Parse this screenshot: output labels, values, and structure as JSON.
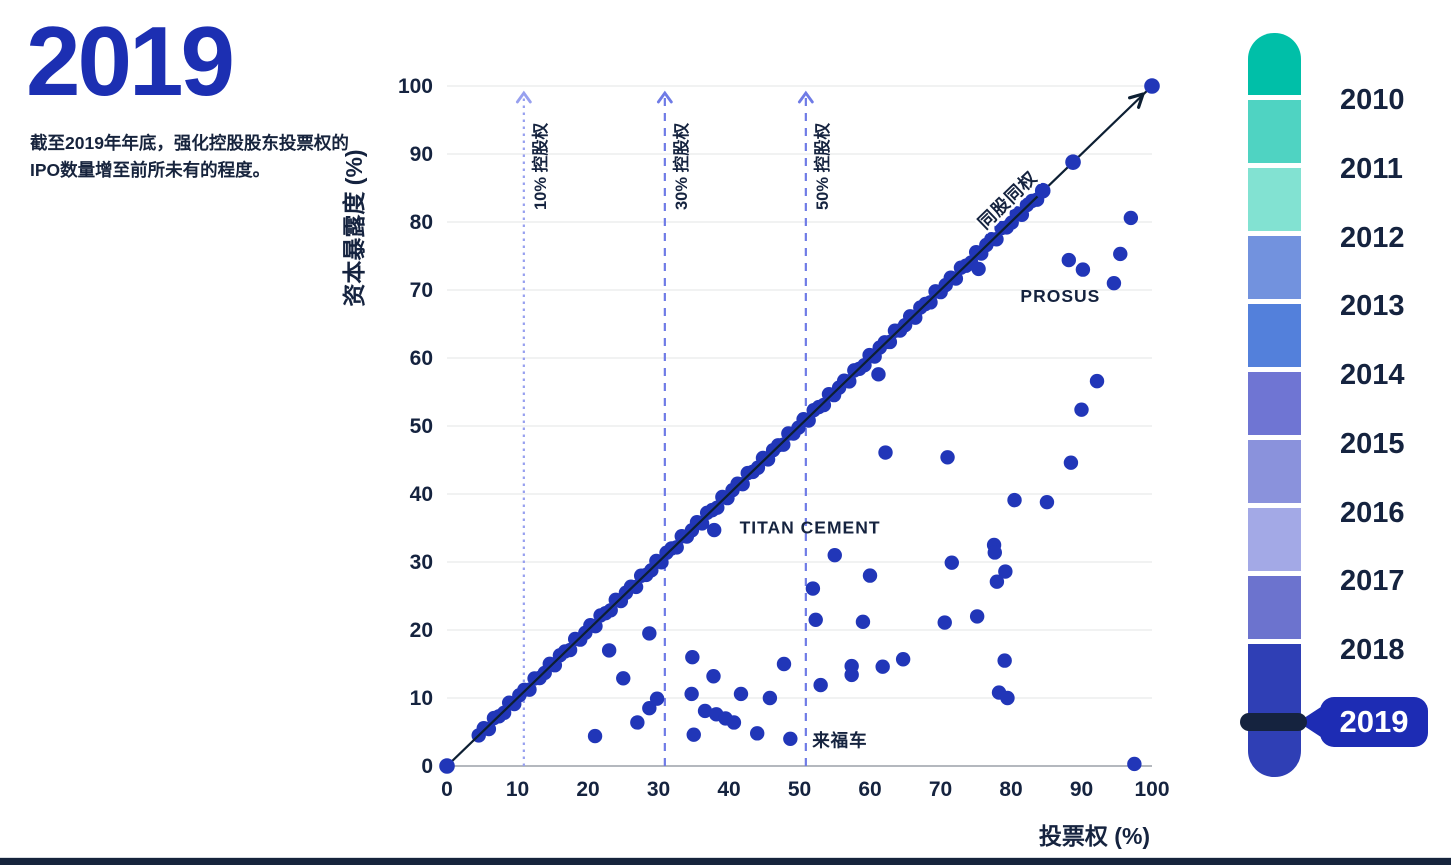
{
  "header": {
    "year": "2019",
    "description": "截至2019年年底，强化控股股东投票权的IPO数量增至前所未有的程度。"
  },
  "chart_data": {
    "type": "scatter",
    "xlabel": "投票权 (%)",
    "ylabel": "资本暴露度 (%)",
    "xlim": [
      0,
      100
    ],
    "ylim": [
      0,
      100
    ],
    "x_ticks": [
      0,
      10,
      20,
      30,
      40,
      50,
      60,
      70,
      80,
      90,
      100
    ],
    "y_ticks": [
      0,
      10,
      20,
      30,
      40,
      50,
      60,
      70,
      80,
      90,
      100
    ],
    "grid": "horizontal",
    "point_color": "#2136B8",
    "line_color": "#0D1F33",
    "diagonal_line": {
      "from": [
        0,
        0
      ],
      "to": [
        100,
        100
      ],
      "arrow": true
    },
    "diagonal_band": {
      "note": "dense overlapping IPO dots where voting rights equal capital exposure (one share one vote)",
      "start": 4.5,
      "end": 84.3,
      "step": 0.72,
      "jitter": 0.5,
      "singles": [
        [
          0,
          0
        ],
        [
          84.5,
          84.6
        ],
        [
          88.8,
          88.8
        ],
        [
          100,
          100
        ]
      ]
    },
    "threshold_lines": [
      {
        "label": "10% 控股权",
        "x": 10,
        "style": "dotted",
        "color": "#97A0EF"
      },
      {
        "label": "30% 控股权",
        "x": 30,
        "style": "dashed",
        "color": "#6F7BE6"
      },
      {
        "label": "50% 控股权",
        "x": 50,
        "style": "dashed",
        "color": "#6F7BE6"
      }
    ],
    "points": [
      {
        "x": 21,
        "y": 4.4
      },
      {
        "x": 23,
        "y": 17
      },
      {
        "x": 25,
        "y": 12.9
      },
      {
        "x": 27,
        "y": 6.4
      },
      {
        "x": 28.7,
        "y": 19.5
      },
      {
        "x": 28.7,
        "y": 8.5
      },
      {
        "x": 29.8,
        "y": 9.9
      },
      {
        "x": 34.8,
        "y": 16
      },
      {
        "x": 34.7,
        "y": 10.6
      },
      {
        "x": 35,
        "y": 4.6
      },
      {
        "x": 36.6,
        "y": 8.1
      },
      {
        "x": 37.8,
        "y": 13.2
      },
      {
        "x": 37.9,
        "y": 34.7,
        "label": "TITAN CEMENT"
      },
      {
        "x": 38.2,
        "y": 7.6
      },
      {
        "x": 39.5,
        "y": 7
      },
      {
        "x": 40.7,
        "y": 6.4
      },
      {
        "x": 41.7,
        "y": 10.6
      },
      {
        "x": 44,
        "y": 4.8
      },
      {
        "x": 45.8,
        "y": 10
      },
      {
        "x": 47.8,
        "y": 15
      },
      {
        "x": 48.7,
        "y": 4,
        "label": "来福车"
      },
      {
        "x": 51.9,
        "y": 26.1
      },
      {
        "x": 52.3,
        "y": 21.5
      },
      {
        "x": 53,
        "y": 11.9
      },
      {
        "x": 55,
        "y": 31
      },
      {
        "x": 57.4,
        "y": 14.7
      },
      {
        "x": 57.4,
        "y": 13.4
      },
      {
        "x": 59,
        "y": 21.2
      },
      {
        "x": 60,
        "y": 28
      },
      {
        "x": 61.2,
        "y": 57.6
      },
      {
        "x": 61.8,
        "y": 14.6
      },
      {
        "x": 62.2,
        "y": 46.1
      },
      {
        "x": 64.7,
        "y": 15.7
      },
      {
        "x": 70.6,
        "y": 21.1
      },
      {
        "x": 71,
        "y": 45.4
      },
      {
        "x": 71.6,
        "y": 29.9
      },
      {
        "x": 75.2,
        "y": 22
      },
      {
        "x": 75.4,
        "y": 73.1
      },
      {
        "x": 77.6,
        "y": 32.5
      },
      {
        "x": 77.7,
        "y": 31.4
      },
      {
        "x": 78,
        "y": 27.1
      },
      {
        "x": 78.3,
        "y": 10.8
      },
      {
        "x": 79.1,
        "y": 15.5
      },
      {
        "x": 79.2,
        "y": 28.6
      },
      {
        "x": 79.5,
        "y": 10
      },
      {
        "x": 80.5,
        "y": 39.1
      },
      {
        "x": 85.1,
        "y": 38.8
      },
      {
        "x": 88.2,
        "y": 74.4,
        "label": "PROSUS"
      },
      {
        "x": 88.5,
        "y": 44.6
      },
      {
        "x": 90,
        "y": 52.4
      },
      {
        "x": 90.2,
        "y": 73
      },
      {
        "x": 92.2,
        "y": 56.6
      },
      {
        "x": 94.6,
        "y": 71
      },
      {
        "x": 95.5,
        "y": 75.3
      },
      {
        "x": 97,
        "y": 80.6
      },
      {
        "x": 97.5,
        "y": 0.3
      }
    ],
    "annotations": [
      {
        "text": "同股同权",
        "x": 80.1,
        "y": 82.6,
        "anchor": "middle",
        "rotate": -44,
        "halo": true
      },
      {
        "text": "PROSUS",
        "x": 87,
        "y": 68.2,
        "anchor": "middle"
      },
      {
        "text": "TITAN CEMENT",
        "x": 41.5,
        "y": 34.2,
        "anchor": "start"
      },
      {
        "text": "来福车",
        "x": 51.8,
        "y": 2.9,
        "anchor": "start"
      }
    ]
  },
  "timeline": {
    "years": [
      "2010",
      "2011",
      "2012",
      "2013",
      "2014",
      "2015",
      "2016",
      "2017",
      "2018",
      "2019"
    ],
    "segment_colors": [
      "#00BFA8",
      "#4FD3C2",
      "#82E2D2",
      "#7292DE",
      "#5380DB",
      "#6F75D3",
      "#8A92DC",
      "#A3A9E6",
      "#6C73CE",
      "#2F3FB5"
    ],
    "selected_year": "2019",
    "badge_color": "#1D2CB4",
    "marker_color": "#15233F"
  }
}
